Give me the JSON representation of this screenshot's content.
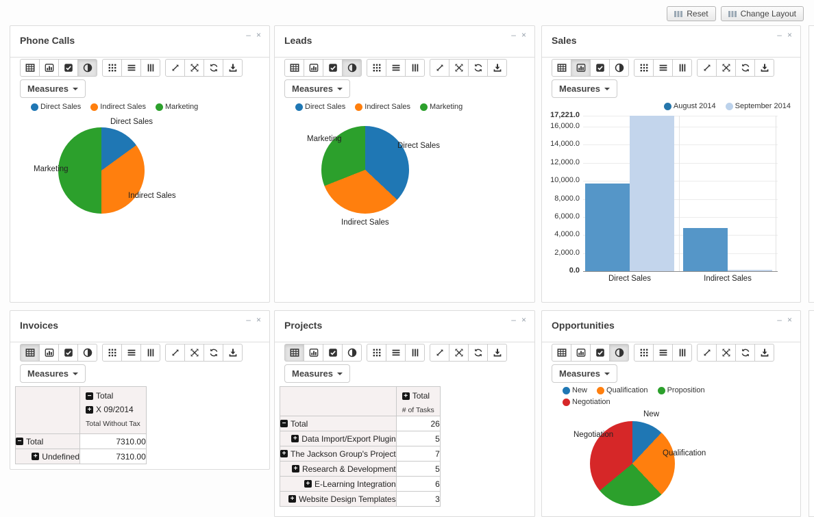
{
  "app": {
    "reset_label": "Reset",
    "change_layout_label": "Change Layout"
  },
  "panel_controls": {
    "minimize": "–",
    "close": "×"
  },
  "toolbar": {
    "measures_label": "Measures",
    "icon_names": [
      "table",
      "bar-chart",
      "check-square",
      "contrast",
      "grid",
      "list",
      "columns",
      "expand",
      "move",
      "refresh",
      "download"
    ],
    "groups": [
      [
        0,
        1,
        2,
        3
      ],
      [
        4,
        5,
        6
      ],
      [
        7,
        8,
        9,
        10
      ]
    ]
  },
  "panels": [
    {
      "title": "Phone Calls",
      "active_icon": "contrast",
      "chart_index": 0
    },
    {
      "title": "Leads",
      "active_icon": "contrast",
      "chart_index": 1
    },
    {
      "title": "Sales",
      "active_icon": "bar-chart",
      "chart_index": 2
    },
    {
      "title": "Invoices",
      "active_icon": "table",
      "chart_index": 3
    },
    {
      "title": "Projects",
      "active_icon": "table",
      "chart_index": 4
    },
    {
      "title": "Opportunities",
      "active_icon": "contrast",
      "chart_index": 5
    }
  ],
  "chart_data": [
    {
      "panel": "Phone Calls",
      "type": "pie",
      "labels": [
        "Direct Sales",
        "Indirect Sales",
        "Marketing"
      ],
      "values_percent": [
        15,
        35,
        50
      ],
      "colors": [
        "#1f77b4",
        "#ff7f0e",
        "#2ca02c"
      ],
      "legend_position": "top"
    },
    {
      "panel": "Leads",
      "type": "pie",
      "labels": [
        "Direct Sales",
        "Indirect Sales",
        "Marketing"
      ],
      "values_percent": [
        37,
        32,
        31
      ],
      "colors": [
        "#1f77b4",
        "#ff7f0e",
        "#2ca02c"
      ],
      "legend_position": "top"
    },
    {
      "panel": "Sales",
      "type": "bar",
      "categories": [
        "Direct Sales",
        "Indirect Sales"
      ],
      "series": [
        {
          "name": "August 2014",
          "values": [
            9700,
            4800
          ],
          "bar_color": "#5596c8",
          "legend_color": "#2576ab"
        },
        {
          "name": "September 2014",
          "values": [
            17221,
            120
          ],
          "bar_color": "#c3d5ec",
          "legend_color": "#bcd2eb"
        }
      ],
      "ylim": [
        0,
        17221
      ],
      "yticks": [
        {
          "label": "17,221.0",
          "value": 17221,
          "bold": true
        },
        {
          "label": "16,000.0",
          "value": 16000
        },
        {
          "label": "14,000.0",
          "value": 14000
        },
        {
          "label": "12,000.0",
          "value": 12000
        },
        {
          "label": "10,000.0",
          "value": 10000
        },
        {
          "label": "8,000.0",
          "value": 8000
        },
        {
          "label": "6,000.0",
          "value": 6000
        },
        {
          "label": "4,000.0",
          "value": 4000
        },
        {
          "label": "2,000.0",
          "value": 2000
        },
        {
          "label": "0.0",
          "value": 0,
          "bold": true
        }
      ],
      "legend_position": "top-right"
    },
    {
      "panel": "Invoices",
      "type": "table",
      "header_lines": [
        {
          "icon": "minus",
          "text": "Total"
        },
        {
          "icon": "plus",
          "text": "X 09/2014"
        },
        {
          "icon": null,
          "text": "Total Without Tax"
        }
      ],
      "rows": [
        {
          "icon": "minus",
          "label": "Total",
          "indent": 0,
          "value": "7310.00"
        },
        {
          "icon": "plus",
          "label": "Undefined",
          "indent": 1,
          "value": "7310.00"
        }
      ]
    },
    {
      "panel": "Projects",
      "type": "table",
      "header_lines": [
        {
          "icon": "plus",
          "text": "Total"
        },
        {
          "icon": null,
          "text": "# of Tasks"
        }
      ],
      "rows": [
        {
          "icon": "minus",
          "label": "Total",
          "indent": 0,
          "value": "26"
        },
        {
          "icon": "plus",
          "label": "Data Import/Export Plugin",
          "indent": 1,
          "value": "5"
        },
        {
          "icon": "plus",
          "label": "The Jackson Group's Project",
          "indent": 1,
          "value": "7"
        },
        {
          "icon": "plus",
          "label": "Research & Development",
          "indent": 1,
          "value": "5"
        },
        {
          "icon": "plus",
          "label": "E-Learning Integration",
          "indent": 1,
          "value": "6"
        },
        {
          "icon": "plus",
          "label": "Website Design Templates",
          "indent": 1,
          "value": "3"
        }
      ]
    },
    {
      "panel": "Opportunities",
      "type": "pie",
      "labels": [
        "New",
        "Qualification",
        "Proposition",
        "Negotiation"
      ],
      "values_percent": [
        12,
        26,
        26,
        36
      ],
      "colors": [
        "#1f77b4",
        "#ff7f0e",
        "#2ca02c",
        "#d62728"
      ],
      "legend_position": "top"
    }
  ]
}
